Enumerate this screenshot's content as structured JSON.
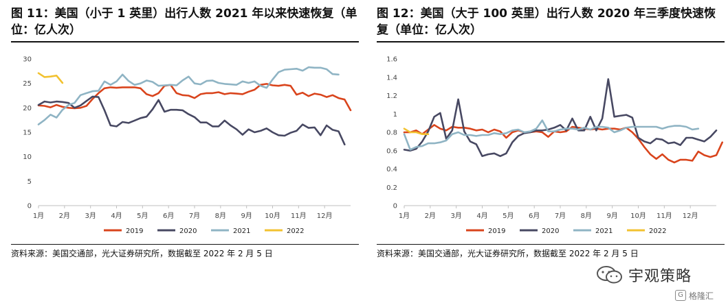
{
  "colors": {
    "2019": "#d9441c",
    "2020": "#474862",
    "2021": "#8fb4c4",
    "2022": "#f2c230"
  },
  "chart_data": [
    {
      "type": "line",
      "title": "图 11：美国（小于 1 英里）出行人数 2021 年以来快速恢复（单位：亿人次）",
      "source": "资料来源：美国交通部，光大证券研究所，数据截至 2022 年 2 月 5 日",
      "x_labels": [
        "1月",
        "2月",
        "3月",
        "4月",
        "5月",
        "6月",
        "7月",
        "8月",
        "9月",
        "10月",
        "11月",
        "12月"
      ],
      "ylim": [
        0,
        30
      ],
      "y_ticks": [
        "0",
        "5",
        "10",
        "15",
        "20",
        "25",
        "30"
      ],
      "y_tick_values": [
        0,
        5,
        10,
        15,
        20,
        25,
        30
      ],
      "x_count": 53,
      "series": [
        {
          "name": "2019",
          "color": "#d9441c",
          "values": [
            20.5,
            20.4,
            20.1,
            20.6,
            20.2,
            20.0,
            19.9,
            20.0,
            20.4,
            21.8,
            23.0,
            24.0,
            24.2,
            24.1,
            24.2,
            24.2,
            24.2,
            24.0,
            22.8,
            22.4,
            23.0,
            24.5,
            24.7,
            23.0,
            22.6,
            22.5,
            22.0,
            22.8,
            23.0,
            23.0,
            23.2,
            22.8,
            23.0,
            22.9,
            22.8,
            23.3,
            23.7,
            24.7,
            24.9,
            24.6,
            24.5,
            24.7,
            24.5,
            22.7,
            23.1,
            22.4,
            22.9,
            22.7,
            22.2,
            22.6,
            22.0,
            21.7,
            19.5
          ]
        },
        {
          "name": "2020",
          "color": "#474862",
          "values": [
            20.6,
            21.3,
            21.1,
            21.3,
            21.2,
            21.0,
            20.0,
            20.5,
            21.4,
            22.3,
            22.2,
            19.5,
            16.4,
            16.2,
            17.1,
            16.9,
            17.4,
            17.9,
            18.2,
            19.7,
            21.6,
            19.2,
            19.6,
            19.6,
            19.5,
            18.7,
            18.1,
            17.0,
            17.0,
            16.2,
            16.2,
            17.4,
            16.4,
            15.6,
            14.5,
            15.6,
            15.0,
            15.3,
            15.8,
            15.0,
            14.4,
            14.3,
            14.9,
            15.3,
            16.6,
            15.9,
            16.0,
            14.4,
            16.4,
            15.5,
            15.2,
            12.5
          ]
        },
        {
          "name": "2021",
          "color": "#8fb4c4",
          "values": [
            16.6,
            17.5,
            18.6,
            18.0,
            19.6,
            20.6,
            21.0,
            22.6,
            23.0,
            23.4,
            23.5,
            25.4,
            24.7,
            25.4,
            26.8,
            25.5,
            24.7,
            25.0,
            25.6,
            25.3,
            24.5,
            24.6,
            24.7,
            24.6,
            25.6,
            26.4,
            25.0,
            24.8,
            25.5,
            25.6,
            25.1,
            24.9,
            24.8,
            24.7,
            25.4,
            25.1,
            25.4,
            24.5,
            24.1,
            25.8,
            27.3,
            27.8,
            27.9,
            28.0,
            27.6,
            28.3,
            28.2,
            28.2,
            27.9,
            26.9,
            26.8
          ]
        },
        {
          "name": "2022",
          "color": "#f2c230",
          "values": [
            27.1,
            26.3,
            26.4,
            26.6,
            25.1
          ]
        }
      ]
    },
    {
      "type": "line",
      "title": "图 12：美国（大于 100 英里）出行人数 2020 年三季度快速恢复（单位：亿人次）",
      "source": "资料来源：美国交通部，光大证券研究所，数据截至 2022 年 2 月 5 日",
      "x_labels": [
        "1月",
        "2月",
        "3月",
        "4月",
        "5月",
        "6月",
        "7月",
        "8月",
        "9月",
        "10月",
        "11月",
        "12月"
      ],
      "ylim": [
        0,
        1.6
      ],
      "y_ticks": [
        "0",
        "0.2",
        "0.4",
        "0.6",
        "0.8",
        "1",
        "1.2",
        "1.4",
        "1.6"
      ],
      "y_tick_values": [
        0,
        0.2,
        0.4,
        0.6,
        0.8,
        1,
        1.2,
        1.4,
        1.6
      ],
      "x_count": 53,
      "series": [
        {
          "name": "2019",
          "color": "#d9441c",
          "values": [
            0.8,
            0.8,
            0.82,
            0.78,
            0.83,
            0.88,
            0.84,
            0.82,
            0.86,
            0.85,
            0.85,
            0.84,
            0.82,
            0.83,
            0.8,
            0.83,
            0.81,
            0.74,
            0.8,
            0.82,
            0.8,
            0.8,
            0.81,
            0.8,
            0.75,
            0.81,
            0.8,
            0.81,
            0.86,
            0.85,
            0.84,
            0.83,
            0.84,
            0.83,
            0.84,
            0.84,
            0.83,
            0.85,
            0.8,
            0.73,
            0.64,
            0.56,
            0.51,
            0.56,
            0.5,
            0.47,
            0.5,
            0.5,
            0.49,
            0.59,
            0.55,
            0.53,
            0.55,
            0.69
          ]
        },
        {
          "name": "2020",
          "color": "#474862",
          "values": [
            0.61,
            0.6,
            0.62,
            0.7,
            0.81,
            0.97,
            1.01,
            0.73,
            0.82,
            1.16,
            0.81,
            0.7,
            0.67,
            0.54,
            0.56,
            0.57,
            0.54,
            0.57,
            0.69,
            0.76,
            0.79,
            0.8,
            0.82,
            0.82,
            0.83,
            0.85,
            0.88,
            0.82,
            0.95,
            0.82,
            0.82,
            0.97,
            0.82,
            0.95,
            1.38,
            0.97,
            0.98,
            0.99,
            0.96,
            0.74,
            0.7,
            0.68,
            0.73,
            0.72,
            0.68,
            0.69,
            0.66,
            0.74,
            0.74,
            0.72,
            0.7,
            0.75,
            0.82
          ]
        },
        {
          "name": "2021",
          "color": "#8fb4c4",
          "values": [
            0.78,
            0.61,
            0.64,
            0.65,
            0.68,
            0.68,
            0.69,
            0.71,
            0.78,
            0.8,
            0.77,
            0.77,
            0.76,
            0.77,
            0.77,
            0.79,
            0.78,
            0.79,
            0.82,
            0.83,
            0.8,
            0.81,
            0.84,
            0.93,
            0.81,
            0.81,
            0.83,
            0.84,
            0.84,
            0.83,
            0.85,
            0.83,
            0.86,
            0.86,
            0.85,
            0.8,
            0.82,
            0.85,
            0.86,
            0.86,
            0.86,
            0.86,
            0.86,
            0.84,
            0.86,
            0.87,
            0.87,
            0.86,
            0.83,
            0.84
          ]
        },
        {
          "name": "2022",
          "color": "#f2c230",
          "values": [
            0.84,
            0.8,
            0.8,
            0.78,
            0.78
          ]
        }
      ]
    }
  ],
  "watermark": {
    "text": "宇观策略",
    "corner_text": "格隆汇",
    "corner_letter": "G"
  }
}
